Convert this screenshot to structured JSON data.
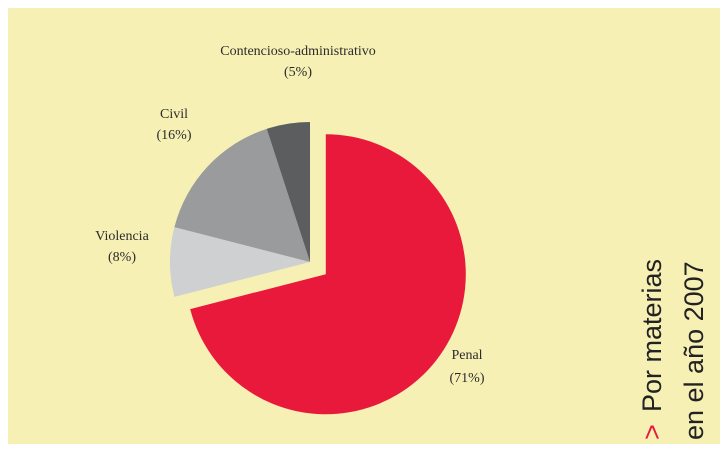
{
  "chart_data": {
    "type": "pie",
    "title": "",
    "exploded": "Penal",
    "slices": [
      {
        "name": "Penal",
        "label": "Penal",
        "pct_label": "(71%)",
        "value": 71,
        "color": "#e8193b"
      },
      {
        "name": "Violencia",
        "label": "Violencia",
        "pct_label": "(8%)",
        "value": 8,
        "color": "#cfd0d2"
      },
      {
        "name": "Civil",
        "label": "Civil",
        "pct_label": "(16%)",
        "value": 16,
        "color": "#9a9b9d"
      },
      {
        "name": "Contencioso-administrativo",
        "label": "Contencioso-administrativo",
        "pct_label": "(5%)",
        "value": 5,
        "color": "#5c5d5f"
      }
    ]
  },
  "side_title": {
    "marker": ">",
    "line1": "Por materias",
    "line2": "en el año 2007"
  }
}
